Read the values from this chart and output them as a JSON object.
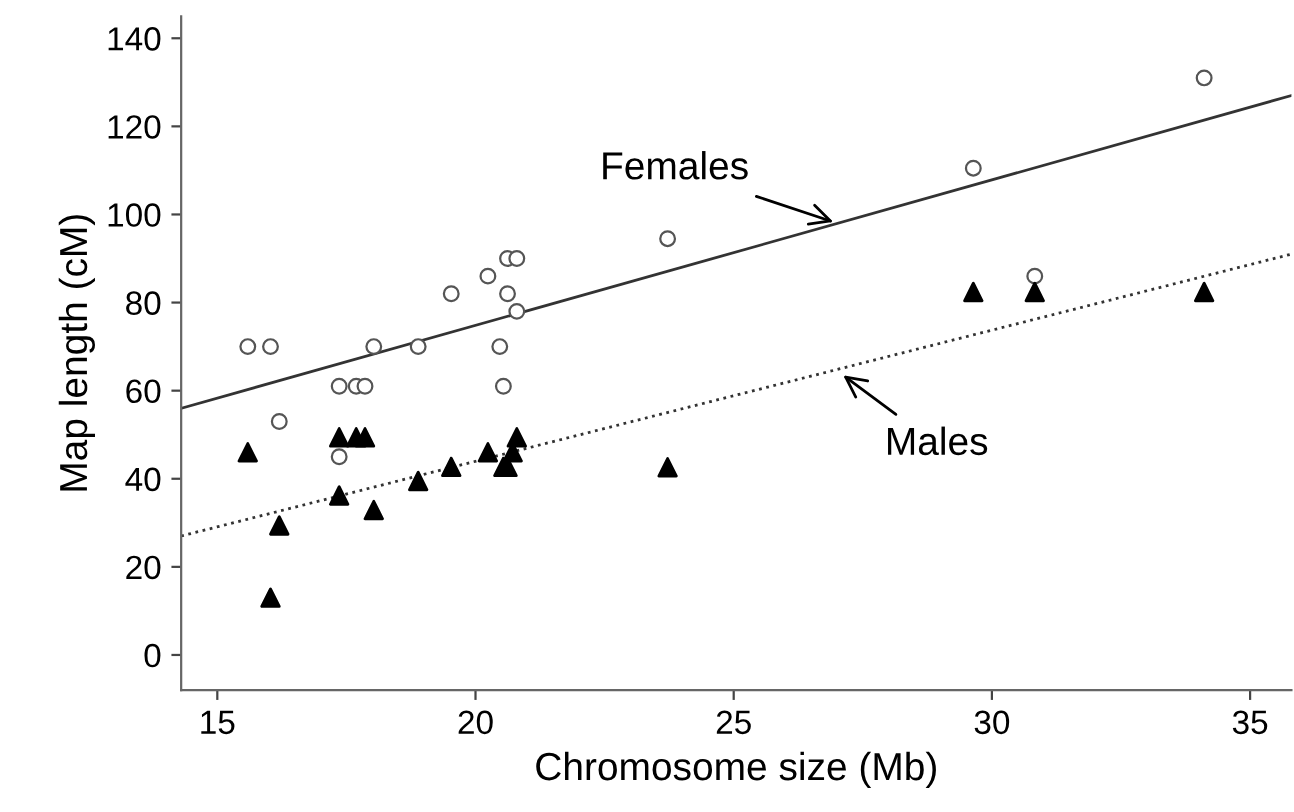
{
  "chart_data": {
    "type": "scatter",
    "xlabel": "Chromosome size (Mb)",
    "ylabel": "Map length (cM)",
    "xlim": [
      14.3,
      35.8
    ],
    "ylim": [
      -8,
      145
    ],
    "xticks": [
      15,
      20,
      25,
      30,
      35
    ],
    "yticks": [
      0,
      20,
      40,
      60,
      80,
      100,
      120,
      140
    ],
    "grid": false,
    "series": [
      {
        "marker": "circle",
        "color": "#555555",
        "x": [
          15.59,
          16.03,
          16.2,
          17.36,
          17.36,
          17.69,
          17.86,
          18.03,
          18.89,
          19.53,
          20.24,
          20.47,
          20.54,
          20.62,
          20.62,
          20.8,
          20.8,
          23.72,
          29.64,
          30.83,
          34.11
        ],
        "values": [
          70,
          70,
          53,
          61,
          45,
          61,
          61,
          70,
          70,
          82,
          86,
          70,
          61,
          82,
          90,
          90,
          78,
          94.5,
          110.5,
          86,
          131
        ]
      },
      {
        "marker": "triangle",
        "color": "#000000",
        "x": [
          15.59,
          16.2,
          16.03,
          17.36,
          17.69,
          17.86,
          17.36,
          18.03,
          18.89,
          19.53,
          20.24,
          20.54,
          20.62,
          20.72,
          20.8,
          23.72,
          29.64,
          30.83,
          34.11
        ],
        "values": [
          46,
          29.4,
          13,
          49.4,
          49.4,
          49.4,
          36.2,
          32.9,
          39.5,
          42.7,
          46,
          42.7,
          42.7,
          46,
          49.4,
          42.6,
          82.4,
          82.4,
          82.4
        ]
      },
      {
        "type": "line",
        "line_style": "solid",
        "color": "#333333",
        "x": [
          14.3,
          35.8
        ],
        "values": [
          56,
          127
        ]
      },
      {
        "type": "line",
        "line_style": "dotted",
        "color": "#333333",
        "x": [
          14.3,
          35.8
        ],
        "values": [
          27,
          91
        ]
      }
    ],
    "annotations": [
      {
        "text": "Females",
        "x": 26.93,
        "y": 98.3
      },
      {
        "text": "Males",
        "x": 27.12,
        "y": 63.5
      }
    ]
  }
}
